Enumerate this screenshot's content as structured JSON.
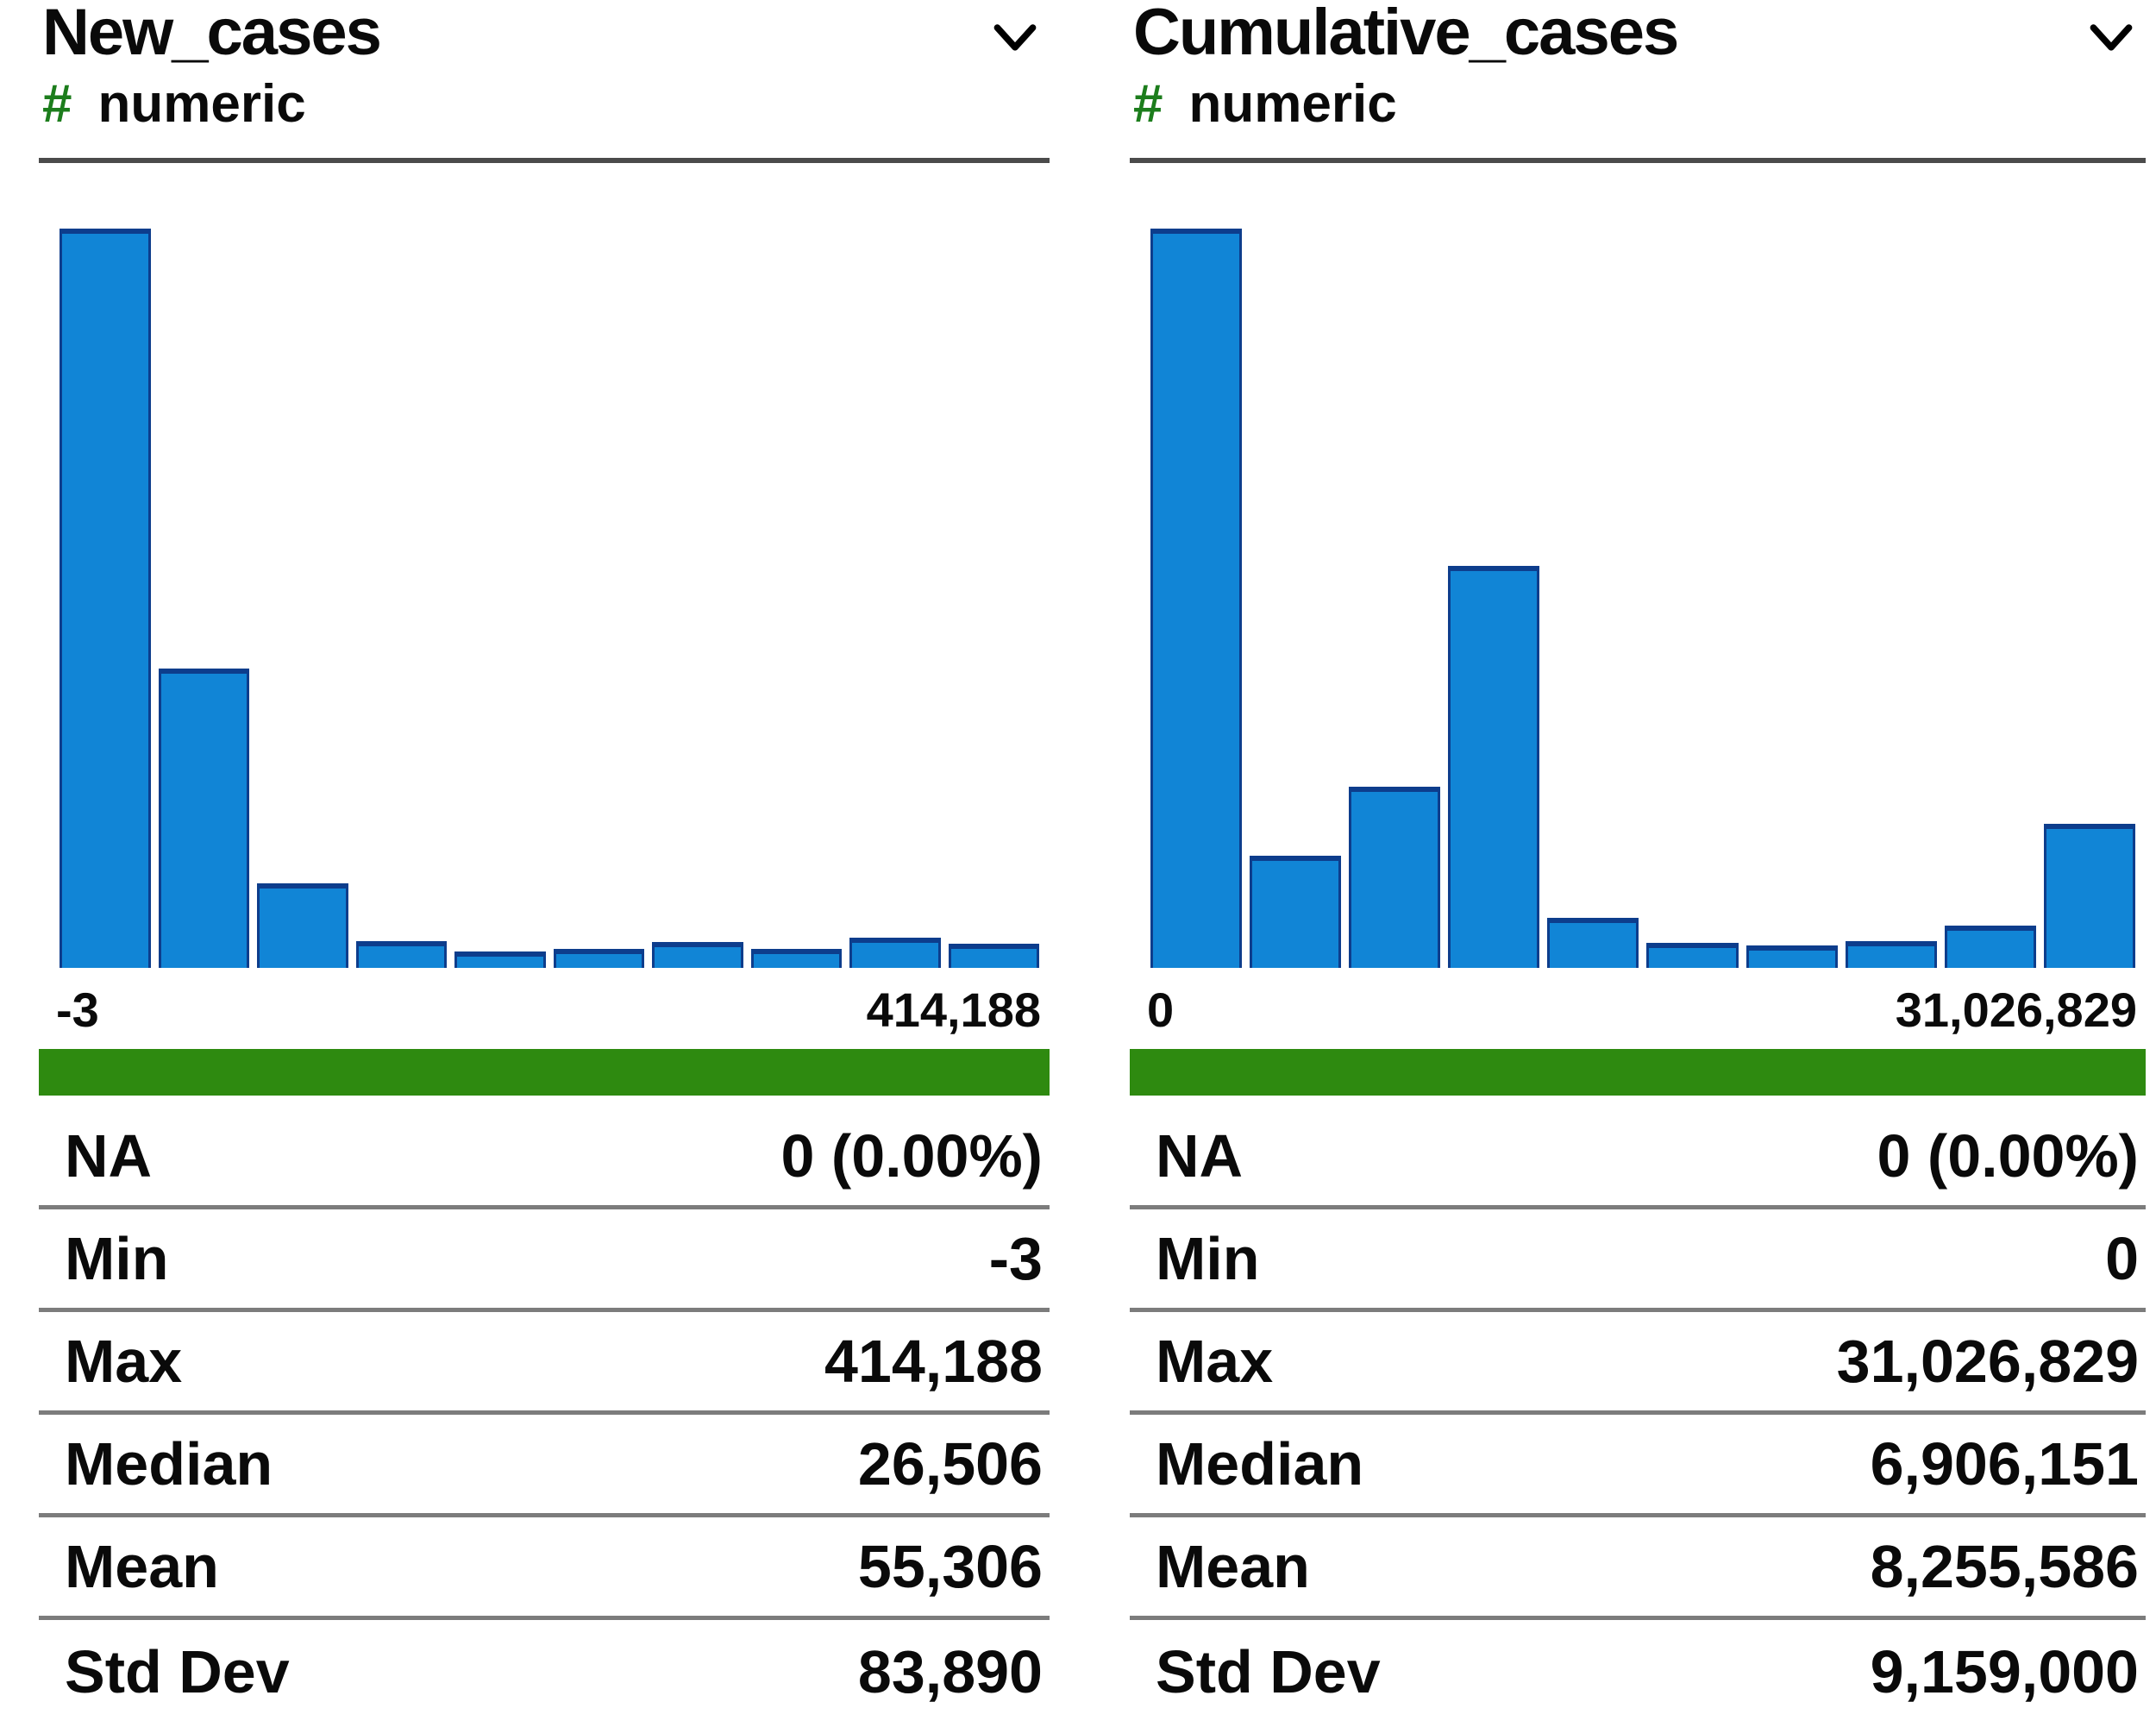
{
  "colors": {
    "bar_fill": "#1185d6",
    "bar_edge": "#0d3d8c",
    "range_bar_green": "#2e8a10",
    "numeric_hash_green": "#1c7d1c",
    "divider_gray": "#4b4b4b",
    "row_separator_gray": "#7c7c7c"
  },
  "panels": [
    {
      "title": "New_cases",
      "type_symbol": "#",
      "type_label": "numeric",
      "chevron_icon": "chevron-down",
      "axis": {
        "min_label": "-3",
        "max_label": "414,188"
      },
      "stats": [
        {
          "label": "NA",
          "value": "0 (0.00%)"
        },
        {
          "label": "Min",
          "value": "-3"
        },
        {
          "label": "Max",
          "value": "414,188"
        },
        {
          "label": "Median",
          "value": "26,506"
        },
        {
          "label": "Mean",
          "value": "55,306"
        },
        {
          "label": "Std Dev",
          "value": "83,890"
        }
      ]
    },
    {
      "title": "Cumulative_cases",
      "type_symbol": "#",
      "type_label": "numeric",
      "chevron_icon": "chevron-down",
      "axis": {
        "min_label": "0",
        "max_label": "31,026,829"
      },
      "stats": [
        {
          "label": "NA",
          "value": "0 (0.00%)"
        },
        {
          "label": "Min",
          "value": "0"
        },
        {
          "label": "Max",
          "value": "31,026,829"
        },
        {
          "label": "Median",
          "value": "6,906,151"
        },
        {
          "label": "Mean",
          "value": "8,255,586"
        },
        {
          "label": "Std Dev",
          "value": "9,159,000"
        }
      ]
    }
  ],
  "chart_data": [
    {
      "type": "bar",
      "title": "New_cases histogram",
      "n_bins": 10,
      "x_range_labels": [
        "-3",
        "414,188"
      ],
      "relative_heights": [
        1.0,
        0.405,
        0.114,
        0.036,
        0.022,
        0.026,
        0.035,
        0.026,
        0.041,
        0.033
      ],
      "grid": false,
      "legend": "none"
    },
    {
      "type": "bar",
      "title": "Cumulative_cases histogram",
      "n_bins": 10,
      "x_range_labels": [
        "0",
        "31,026,829"
      ],
      "relative_heights": [
        1.0,
        0.152,
        0.245,
        0.544,
        0.068,
        0.034,
        0.03,
        0.036,
        0.057,
        0.195
      ],
      "grid": false,
      "legend": "none"
    }
  ]
}
